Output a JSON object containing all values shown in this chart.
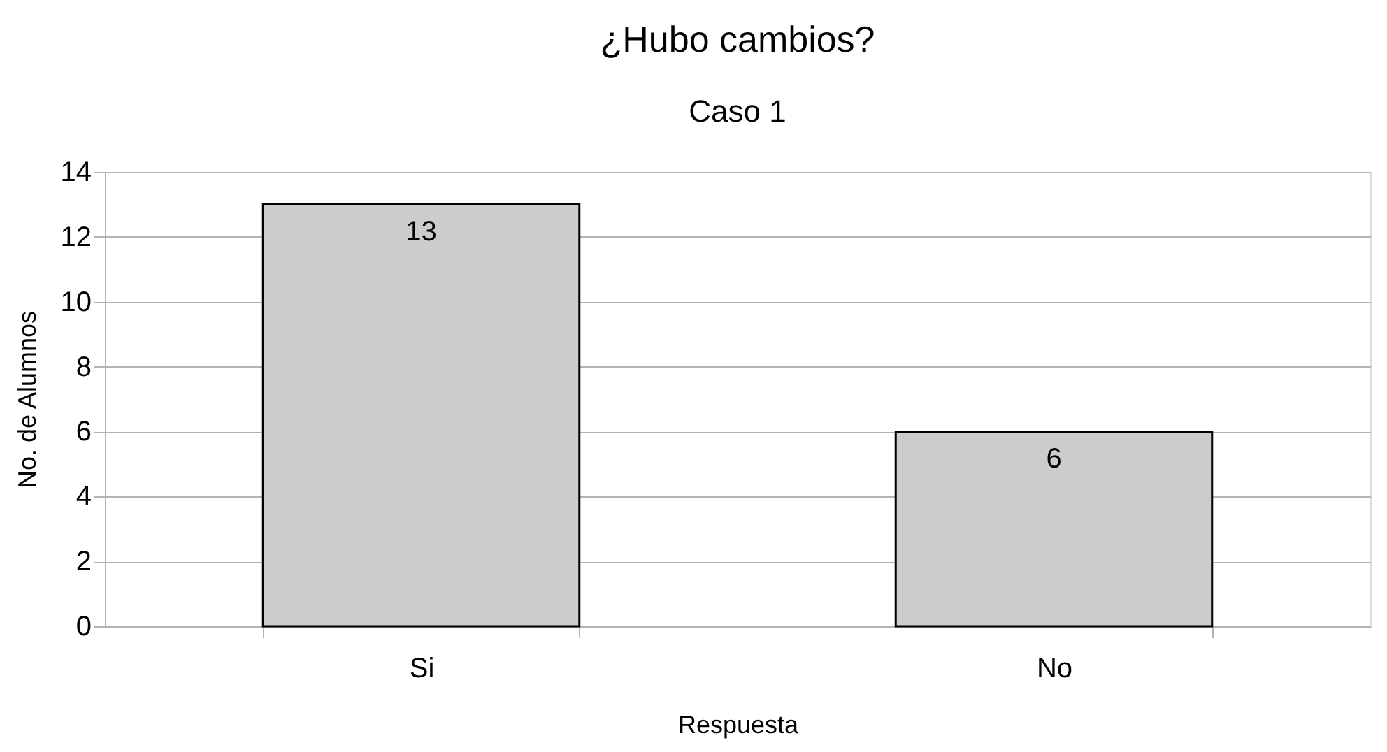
{
  "chart_data": {
    "type": "bar",
    "title": "¿Hubo cambios?",
    "subtitle": "Caso 1",
    "xlabel": "Respuesta",
    "ylabel": "No. de Alumnos",
    "categories": [
      "Si",
      "No"
    ],
    "values": [
      13,
      6
    ],
    "color": "#cccccc",
    "ylim": [
      0,
      14
    ],
    "yticks": [
      0,
      2,
      4,
      6,
      8,
      10,
      12,
      14
    ],
    "grid": "y",
    "data_labels": true
  }
}
